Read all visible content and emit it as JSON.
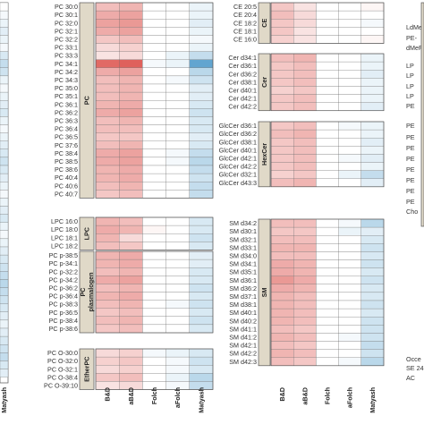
{
  "chart_data": {
    "type": "heatmap",
    "title": "",
    "xlabel": "",
    "ylabel": "",
    "columns": [
      "B&D",
      "aB&D",
      "Folch",
      "aFolch",
      "Matyash"
    ],
    "color_scale": {
      "low": "#3b8fc4",
      "mid": "#ffffff",
      "high": "#d9453f"
    },
    "left_partial": {
      "strip_labels": [],
      "columns": [
        "Matyash"
      ]
    },
    "panels": [
      {
        "id": "pc",
        "strip": "PC",
        "rows": [
          "PC 30:0",
          "PC 30:1",
          "PC 32:0",
          "PC 32:1",
          "PC 32:2",
          "PC 33:1",
          "PC 33:3",
          "PC 34:1",
          "PC 34:2",
          "PC 34:3",
          "PC 35:0",
          "PC 35:1",
          "PC 36:1",
          "PC 36:2",
          "PC 36:3",
          "PC 36:4",
          "PC 36:5",
          "PC 37:6",
          "PC 38:4",
          "PC 38:5",
          "PC 38:6",
          "PC 40:4",
          "PC 40:6",
          "PC 40:7"
        ],
        "values": [
          [
            0.35,
            0.4,
            0,
            0,
            -0.1
          ],
          [
            0.45,
            0.5,
            0,
            0,
            -0.1
          ],
          [
            0.5,
            0.55,
            0,
            0,
            -0.15
          ],
          [
            0.45,
            0.5,
            0,
            0,
            -0.1
          ],
          [
            0.3,
            0.35,
            0,
            0,
            -0.05
          ],
          [
            0.2,
            0.25,
            0,
            0,
            -0.1
          ],
          [
            0.15,
            0.2,
            0,
            -0.1,
            -0.3
          ],
          [
            0.8,
            0.85,
            -0.05,
            -0.1,
            -0.8
          ],
          [
            0.45,
            0.5,
            0,
            0,
            -0.35
          ],
          [
            0.35,
            0.4,
            0,
            -0.05,
            -0.25
          ],
          [
            0.35,
            0.4,
            0,
            0,
            -0.15
          ],
          [
            0.35,
            0.4,
            0,
            0,
            -0.15
          ],
          [
            0.4,
            0.45,
            0,
            0,
            -0.2
          ],
          [
            0.45,
            0.5,
            0,
            0,
            -0.25
          ],
          [
            0.35,
            0.4,
            0,
            0,
            -0.2
          ],
          [
            0.35,
            0.35,
            0,
            0,
            -0.2
          ],
          [
            0.3,
            0.3,
            0,
            0,
            -0.15
          ],
          [
            0.35,
            0.4,
            0,
            0,
            -0.2
          ],
          [
            0.45,
            0.5,
            0,
            -0.05,
            -0.3
          ],
          [
            0.45,
            0.5,
            0,
            -0.05,
            -0.35
          ],
          [
            0.4,
            0.45,
            0,
            0,
            -0.3
          ],
          [
            0.4,
            0.45,
            0,
            0,
            -0.25
          ],
          [
            0.35,
            0.4,
            0,
            0,
            -0.3
          ],
          [
            0.3,
            0.35,
            0,
            0,
            -0.3
          ]
        ]
      },
      {
        "id": "lpc",
        "strip": "LPC",
        "rows": [
          "LPC 16:0",
          "LPC 18:0",
          "LPC 18:1",
          "LPC 18:2"
        ],
        "values": [
          [
            0.4,
            0.35,
            0,
            0,
            -0.2
          ],
          [
            0.45,
            0.4,
            0.05,
            0,
            -0.2
          ],
          [
            0.4,
            0.2,
            0,
            0,
            -0.25
          ],
          [
            0.35,
            0.3,
            0,
            0,
            -0.2
          ]
        ]
      },
      {
        "id": "pcp",
        "strip": "PC plasmalogen",
        "rows": [
          "PC p-38:5",
          "PC p-34:1",
          "PC p-32:2",
          "PC p-34:2",
          "PC p-36:2",
          "PC p-36:4",
          "PC p-38:3",
          "PC p-36:5",
          "PC p-38:4",
          "PC p-38:6"
        ],
        "values": [
          [
            0.4,
            0.45,
            0,
            0,
            -0.15
          ],
          [
            0.4,
            0.45,
            0,
            0,
            -0.15
          ],
          [
            0.35,
            0.4,
            0,
            0,
            -0.2
          ],
          [
            0.45,
            0.5,
            0,
            0,
            -0.2
          ],
          [
            0.35,
            0.4,
            0,
            0,
            -0.25
          ],
          [
            0.4,
            0.45,
            0,
            0,
            -0.2
          ],
          [
            0.35,
            0.4,
            0,
            -0.05,
            -0.25
          ],
          [
            0.3,
            0.35,
            0,
            0,
            -0.2
          ],
          [
            0.35,
            0.4,
            0,
            0,
            -0.25
          ],
          [
            0.3,
            0.35,
            0,
            0,
            -0.2
          ]
        ]
      },
      {
        "id": "epc",
        "strip": "EtherPC",
        "rows": [
          "PC O-30:0",
          "PC O-32:0",
          "PC O-32:1",
          "PC O-38:4",
          "PC O-39:10"
        ],
        "values": [
          [
            0.2,
            0.25,
            -0.05,
            -0.1,
            -0.2
          ],
          [
            0.25,
            0.3,
            0,
            -0.05,
            -0.25
          ],
          [
            0.2,
            0.25,
            0,
            -0.05,
            -0.2
          ],
          [
            0.3,
            0.35,
            0,
            -0.1,
            -0.35
          ],
          [
            0.15,
            0.2,
            0,
            -0.05,
            -0.3
          ]
        ]
      },
      {
        "id": "ce",
        "strip": "CE",
        "rows": [
          "CE 20:5",
          "CE 20:4",
          "CE 18:2",
          "CE 18:1",
          "CE 16:0"
        ],
        "values": [
          [
            0.3,
            0.15,
            0,
            0,
            0.05
          ],
          [
            0.35,
            0.2,
            0,
            0,
            0
          ],
          [
            0.3,
            0.2,
            0,
            0,
            -0.05
          ],
          [
            0.3,
            0.15,
            0,
            0,
            0
          ],
          [
            0.25,
            0.15,
            0,
            0,
            0.05
          ]
        ]
      },
      {
        "id": "cer",
        "strip": "Cer",
        "rows": [
          "Cer d34:1",
          "Cer d36:1",
          "Cer d36:2",
          "Cer d38:1",
          "Cer d40:1",
          "Cer d42:1",
          "Cer d42:2"
        ],
        "values": [
          [
            0.35,
            0.4,
            0,
            0,
            -0.1
          ],
          [
            0.3,
            0.35,
            0,
            0,
            -0.1
          ],
          [
            0.3,
            0.35,
            0,
            0,
            -0.15
          ],
          [
            0.3,
            0.35,
            0,
            0,
            -0.1
          ],
          [
            0.25,
            0.3,
            0,
            0,
            -0.1
          ],
          [
            0.3,
            0.35,
            0,
            0,
            -0.1
          ],
          [
            0.3,
            0.35,
            0,
            0,
            -0.15
          ]
        ]
      },
      {
        "id": "hexcer",
        "strip": "HexCer",
        "rows": [
          "GlcCer d36:1",
          "GlcCer d36:2",
          "GlcCer d38:1",
          "GlcCer d40:1",
          "GlcCer d42:1",
          "GlcCer d42:2",
          "GlcCer d32:1",
          "GlcCer d43:3"
        ],
        "values": [
          [
            0.3,
            0.35,
            0,
            -0.05,
            -0.1
          ],
          [
            0.35,
            0.4,
            0,
            0,
            -0.1
          ],
          [
            0.3,
            0.35,
            0,
            0,
            -0.15
          ],
          [
            0.3,
            0.35,
            0,
            0,
            -0.1
          ],
          [
            0.3,
            0.35,
            0,
            -0.05,
            -0.15
          ],
          [
            0.3,
            0.35,
            0,
            0,
            -0.1
          ],
          [
            0.25,
            0.3,
            0,
            -0.1,
            -0.3
          ],
          [
            0.35,
            0.4,
            0,
            0,
            -0.15
          ]
        ]
      },
      {
        "id": "sm",
        "strip": "SM",
        "rows": [
          "SM d34:2",
          "SM d30:1",
          "SM d32:1",
          "SM d33:1",
          "SM d34:0",
          "SM d34:1",
          "SM d35:1",
          "SM d36:1",
          "SM d36:2",
          "SM d37:1",
          "SM d38:1",
          "SM d40:1",
          "SM d40:2",
          "SM d41:1",
          "SM d41:2",
          "SM d42:1",
          "SM d42:2",
          "SM d42:3"
        ],
        "values": [
          [
            0.35,
            0.35,
            0,
            -0.05,
            -0.35
          ],
          [
            0.3,
            0.3,
            0,
            -0.1,
            -0.15
          ],
          [
            0.35,
            0.35,
            0,
            0,
            -0.2
          ],
          [
            0.4,
            0.4,
            0,
            0,
            -0.25
          ],
          [
            0.35,
            0.35,
            0,
            0,
            -0.2
          ],
          [
            0.45,
            0.4,
            0,
            0,
            -0.25
          ],
          [
            0.45,
            0.4,
            0,
            0,
            -0.2
          ],
          [
            0.55,
            0.45,
            0,
            0,
            -0.25
          ],
          [
            0.45,
            0.4,
            0,
            0,
            -0.2
          ],
          [
            0.4,
            0.35,
            0,
            0,
            -0.2
          ],
          [
            0.4,
            0.35,
            0,
            0,
            -0.25
          ],
          [
            0.4,
            0.35,
            0,
            0,
            -0.2
          ],
          [
            0.4,
            0.35,
            0,
            0,
            -0.25
          ],
          [
            0.35,
            0.3,
            0,
            0,
            -0.25
          ],
          [
            0.4,
            0.35,
            0,
            -0.05,
            -0.25
          ],
          [
            0.35,
            0.3,
            0,
            0,
            -0.3
          ],
          [
            0.4,
            0.35,
            0,
            0,
            -0.25
          ],
          [
            0.35,
            0.3,
            0,
            -0.05,
            -0.35
          ]
        ]
      }
    ],
    "right_partial_labels": [
      "LdMeF",
      "PE-",
      "dMeF",
      "LP",
      "LP",
      "LP",
      "LP",
      "PE",
      "PE",
      "PE",
      "PE",
      "PE",
      "PE",
      "PE",
      "PE",
      "PE",
      "Cho",
      "Occe",
      "SE 24:1;O",
      "AC"
    ]
  }
}
